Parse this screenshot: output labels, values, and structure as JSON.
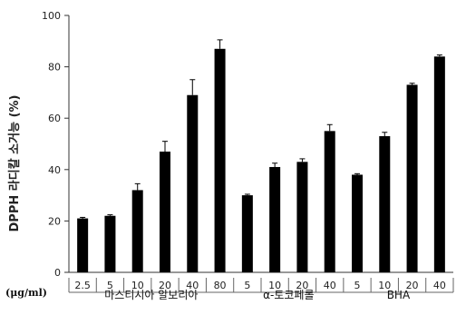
{
  "chart_data": {
    "type": "bar",
    "ylabel": "DPPH 라디칼 소거능 (%)",
    "ylim": [
      0,
      100
    ],
    "yticks": [
      0,
      20,
      40,
      60,
      80,
      100
    ],
    "grid": false,
    "x_unit_label": "(μg/ml)",
    "categories": [
      "2.5",
      "5",
      "10",
      "20",
      "40",
      "80",
      "5",
      "10",
      "20",
      "40",
      "5",
      "10",
      "20",
      "40"
    ],
    "values": [
      21,
      22,
      32,
      47,
      69,
      87,
      30,
      41,
      43,
      55,
      38,
      53,
      73,
      84
    ],
    "errors": [
      0.4,
      0.4,
      2.5,
      4,
      6,
      3.5,
      0.4,
      1.5,
      1.2,
      2.5,
      0.4,
      1.5,
      0.6,
      0.6
    ],
    "groups": [
      {
        "name": "마스티시아 알보리아",
        "count": 6
      },
      {
        "name": "α-토코페롤",
        "count": 4
      },
      {
        "name": "BHA",
        "count": 4
      }
    ],
    "bar_color": "#000000"
  }
}
